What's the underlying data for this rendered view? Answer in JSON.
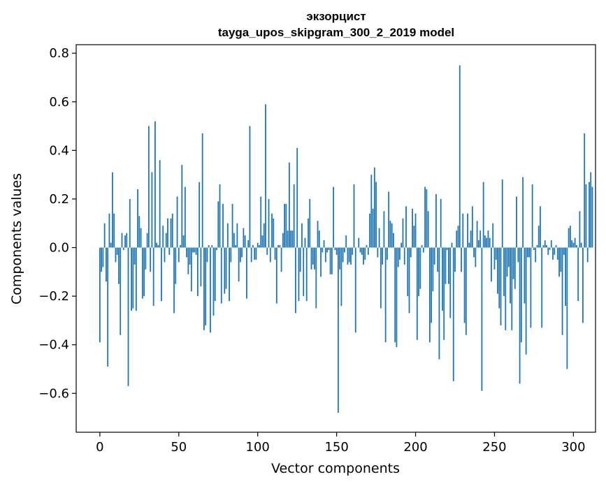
{
  "chart_data": {
    "type": "bar",
    "title": "экзорцист",
    "subtitle": "tayga_upos_skipgram_300_2_2019 model",
    "xlabel": "Vector components",
    "ylabel": "Components values",
    "xlim": [
      -15,
      314
    ],
    "ylim": [
      -0.76,
      0.835
    ],
    "xticks": [
      0,
      50,
      100,
      150,
      200,
      250,
      300
    ],
    "yticks": [
      0.8,
      0.6,
      0.4,
      0.2,
      0.0,
      -0.2,
      -0.4,
      -0.6
    ],
    "ytick_labels": [
      "0.8",
      "0.6",
      "0.4",
      "0.2",
      "0.0",
      "−0.2",
      "−0.4",
      "−0.6"
    ],
    "color": "#1f77b4",
    "values": [
      -0.39,
      -0.1,
      -0.08,
      0.1,
      -0.14,
      -0.49,
      0.14,
      0.02,
      0.31,
      0.14,
      -0.06,
      -0.03,
      -0.15,
      -0.36,
      0.06,
      -0.01,
      0.05,
      0.06,
      -0.57,
      0.2,
      -0.26,
      -0.25,
      -0.07,
      -0.26,
      0.24,
      0.13,
      0.08,
      -0.21,
      -0.2,
      -0.09,
      0.06,
      0.5,
      -0.1,
      0.31,
      -0.24,
      0.52,
      0.02,
      0.01,
      0.36,
      -0.22,
      0.09,
      -0.06,
      0.06,
      0.12,
      -0.03,
      0.12,
      0.14,
      -0.27,
      -0.15,
      0.21,
      -0.06,
      0.01,
      0.34,
      0.05,
      0.25,
      -0.04,
      -0.11,
      -0.07,
      -0.18,
      -0.02,
      -0.02,
      -0.03,
      -0.2,
      0.27,
      -0.16,
      0.47,
      -0.34,
      -0.32,
      -0.06,
      0.01,
      -0.35,
      0.01,
      -0.28,
      -0.22,
      -0.01,
      0.19,
      0.26,
      -0.23,
      0.18,
      -0.19,
      -0.17,
      0.1,
      -0.22,
      -0.06,
      0.18,
      0.06,
      0.01,
      0.1,
      -0.14,
      -0.06,
      -0.04,
      0.08,
      0.05,
      -0.21,
      0.03,
      0.5,
      -0.06,
      0.01,
      -0.05,
      -0.05,
      0.02,
      0.01,
      0.21,
      0.05,
      0.1,
      0.59,
      -0.03,
      0.2,
      -0.06,
      0.14,
      0.12,
      -0.05,
      -0.23,
      0.01,
      0.01,
      -0.1,
      0.06,
      0.18,
      0.18,
      0.07,
      0.35,
      0.07,
      0.07,
      0.26,
      -0.27,
      0.41,
      -0.22,
      -0.1,
      0.1,
      -0.2,
      0.04,
      -0.22,
      0.12,
      0.2,
      -0.09,
      -0.07,
      -0.09,
      -0.25,
      0.11,
      0.07,
      -0.12,
      -0.02,
      0.03,
      -0.06,
      -0.02,
      -0.01,
      -0.11,
      -0.11,
      0.25,
      -0.01,
      -0.03,
      -0.68,
      -0.09,
      -0.24,
      -0.06,
      -0.02,
      0.05,
      -0.07,
      -0.06,
      -0.07,
      -0.03,
      0.26,
      -0.35,
      0.0,
      0.04,
      -0.02,
      -0.03,
      -0.07,
      -0.05,
      0.01,
      -0.03,
      0.14,
      0.3,
      0.16,
      0.33,
      0.27,
      -0.04,
      0.08,
      -0.25,
      -0.07,
      0.15,
      -0.39,
      -0.05,
      0.23,
      0.11,
      0.1,
      0.06,
      -0.39,
      -0.41,
      -0.08,
      -0.05,
      0.02,
      0.12,
      -0.07,
      0.17,
      -0.2,
      -0.27,
      -0.04,
      0.16,
      0.09,
      0.14,
      -0.38,
      -0.2,
      -0.17,
      0.01,
      -0.02,
      0.25,
      0.24,
      0.15,
      -0.39,
      -0.31,
      -0.18,
      -0.07,
      0.22,
      -0.1,
      -0.46,
      0.2,
      -0.26,
      -0.38,
      -0.15,
      -0.01,
      -0.15,
      -0.29,
      0.02,
      -0.55,
      -0.1,
      0.07,
      0.09,
      0.75,
      -0.1,
      0.14,
      -0.31,
      -0.36,
      0.14,
      0.02,
      0.07,
      0.17,
      -0.04,
      -0.08,
      0.11,
      0.03,
      0.07,
      -0.59,
      0.27,
      0.05,
      0.04,
      0.07,
      0.04,
      -0.14,
      0.1,
      -0.09,
      -0.05,
      -0.19,
      -0.25,
      -0.32,
      0.28,
      -0.2,
      -0.34,
      -0.12,
      -0.08,
      -0.23,
      -0.34,
      -0.13,
      -0.17,
      0.21,
      -0.06,
      -0.56,
      -0.39,
      0.29,
      -0.23,
      -0.44,
      -0.04,
      -0.04,
      -0.33,
      0.26,
      -0.01,
      -0.06,
      0.01,
      0.09,
      0.17,
      -0.33,
      0.01,
      0.03,
      0.01,
      -0.03,
      -0.01,
      0.03,
      -0.05,
      -0.03,
      0.01,
      -0.05,
      -0.12,
      -0.1,
      -0.36,
      -0.03,
      -0.24,
      -0.5,
      0.08,
      0.09,
      0.03,
      0.02,
      0.04,
      0.01,
      -0.22,
      0.15,
      0.02,
      -0.31,
      0.47,
      0.26,
      -0.06,
      0.27,
      0.31,
      0.25
    ]
  }
}
